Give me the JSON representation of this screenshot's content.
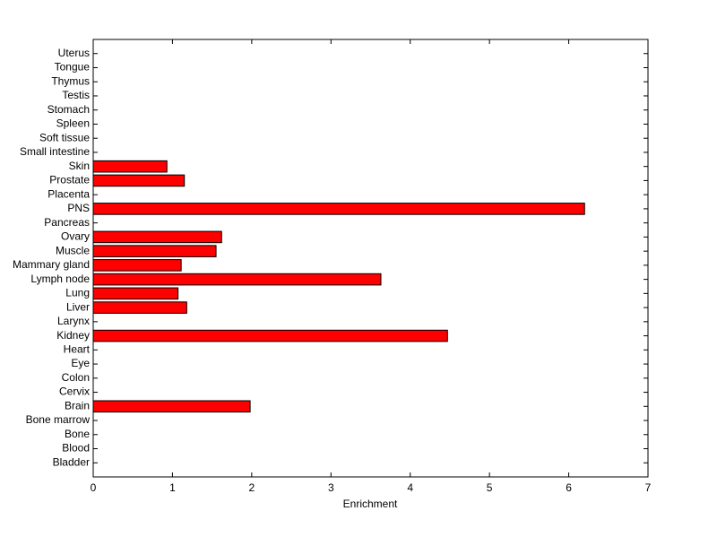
{
  "chart_data": {
    "type": "barh",
    "xlabel": "Enrichment",
    "color": "#ff0000",
    "categories": [
      "Bladder",
      "Blood",
      "Bone",
      "Bone marrow",
      "Brain",
      "Cervix",
      "Colon",
      "Eye",
      "Heart",
      "Kidney",
      "Larynx",
      "Liver",
      "Lung",
      "Lymph node",
      "Mammary gland",
      "Muscle",
      "Ovary",
      "Pancreas",
      "PNS",
      "Placenta",
      "Prostate",
      "Skin",
      "Small intestine",
      "Soft tissue",
      "Spleen",
      "Stomach",
      "Testis",
      "Thymus",
      "Tongue",
      "Uterus"
    ],
    "values": [
      0,
      0,
      0,
      0,
      1.98,
      0,
      0,
      0,
      0,
      4.47,
      0,
      1.18,
      1.07,
      3.63,
      1.11,
      1.55,
      1.62,
      0,
      6.2,
      0,
      1.15,
      0.93,
      0,
      0,
      0,
      0,
      0,
      0,
      0,
      0
    ],
    "xlim": [
      0,
      7
    ],
    "xticks": [
      0,
      1,
      2,
      3,
      4,
      5,
      6,
      7
    ]
  }
}
